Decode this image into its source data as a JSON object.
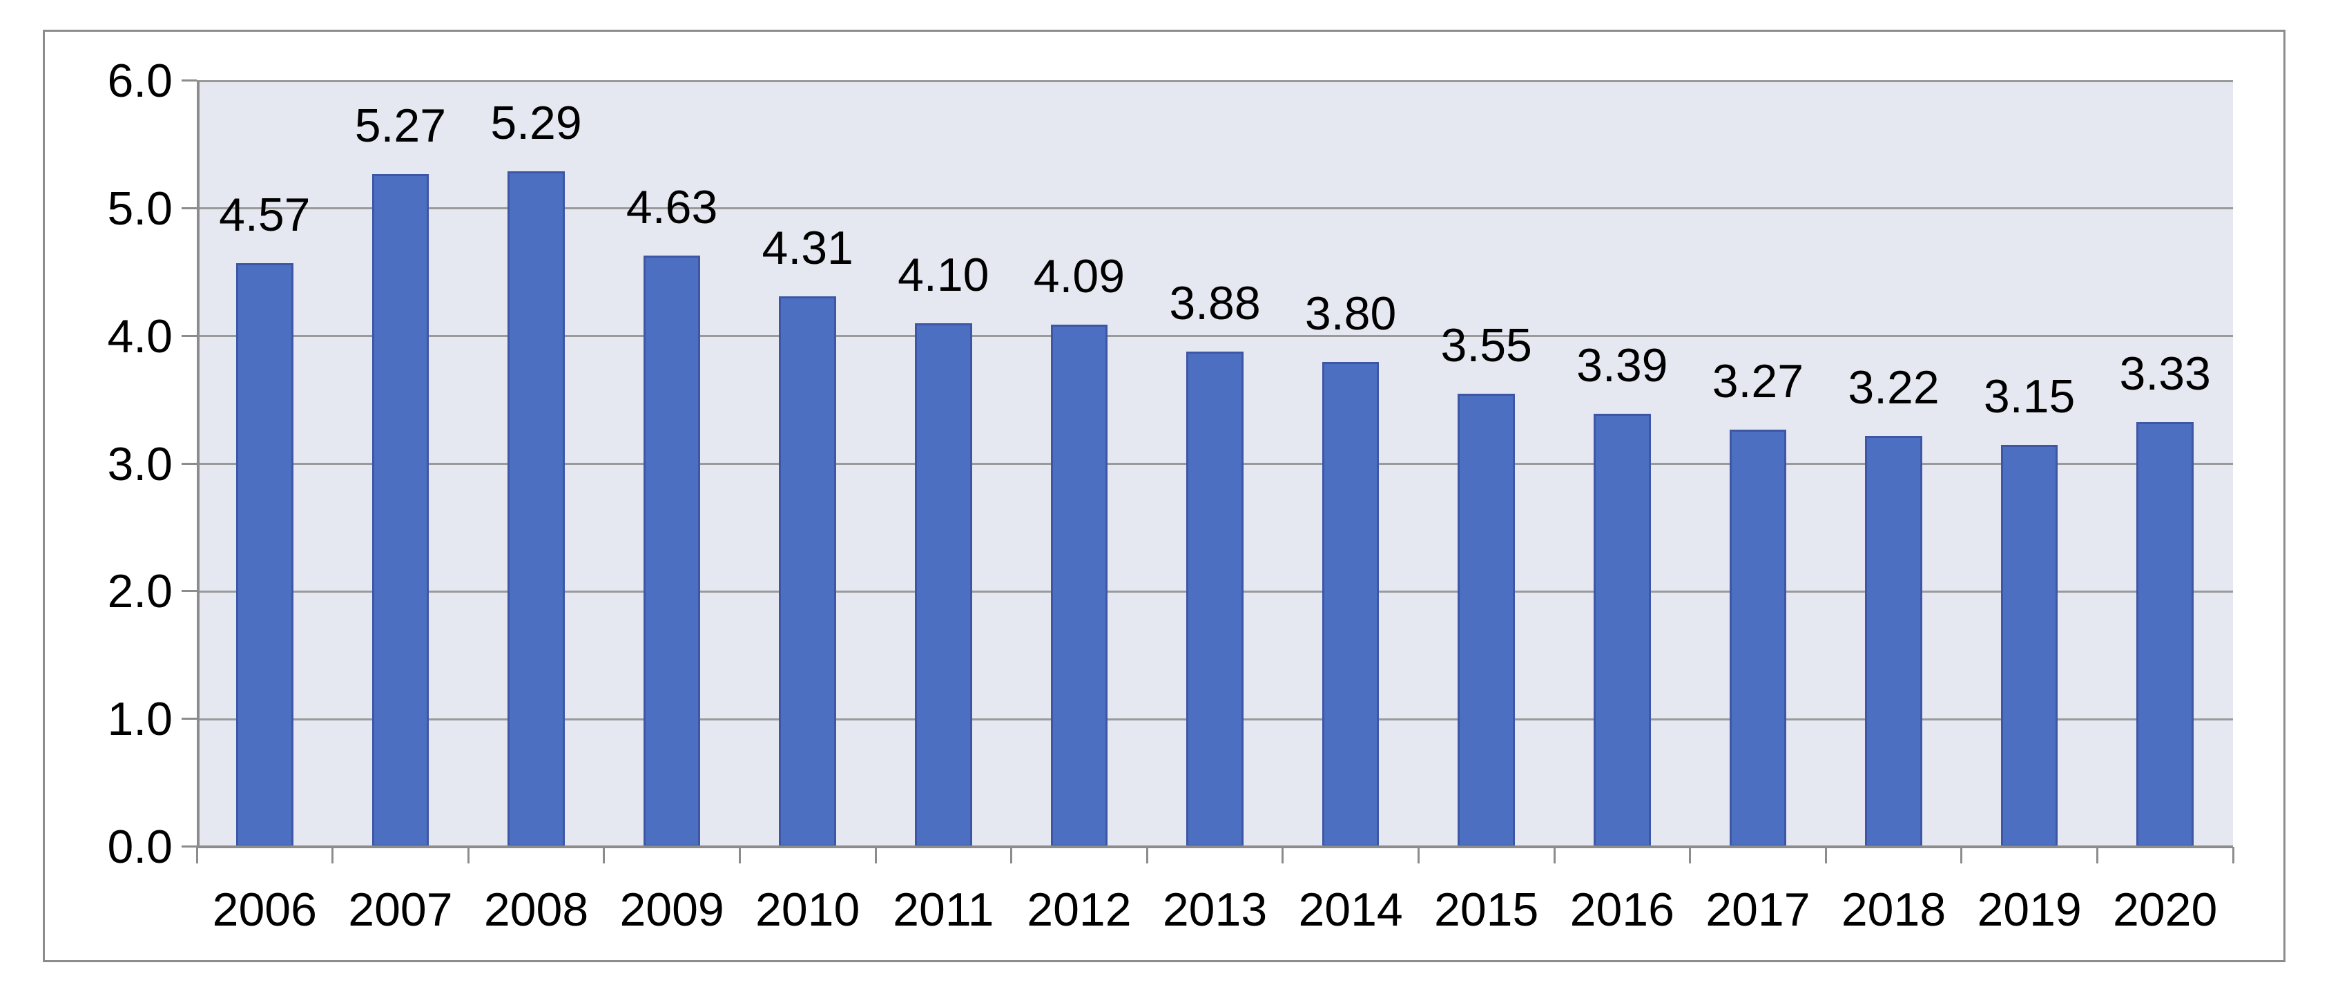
{
  "chart_data": {
    "type": "bar",
    "title": "",
    "xlabel": "",
    "ylabel": "",
    "categories": [
      "2006",
      "2007",
      "2008",
      "2009",
      "2010",
      "2011",
      "2012",
      "2013",
      "2014",
      "2015",
      "2016",
      "2017",
      "2018",
      "2019",
      "2020"
    ],
    "values": [
      4.57,
      5.27,
      5.29,
      4.63,
      4.31,
      4.1,
      4.09,
      3.88,
      3.8,
      3.55,
      3.39,
      3.27,
      3.22,
      3.15,
      3.33
    ],
    "value_labels": [
      "4.57",
      "5.27",
      "5.29",
      "4.63",
      "4.31",
      "4.10",
      "4.09",
      "3.88",
      "3.80",
      "3.55",
      "3.39",
      "3.27",
      "3.22",
      "3.15",
      "3.33"
    ],
    "ylim": [
      0,
      6
    ],
    "ytick_labels": [
      "0.0",
      "1.0",
      "2.0",
      "3.0",
      "4.0",
      "5.0",
      "6.0"
    ],
    "grid": true,
    "legend_position": "none",
    "colors": {
      "bar_fill": "#4d6fc1",
      "bar_border": "#3d56a6",
      "plot_background": "#e6e8f1",
      "gridline": "#9a9a9a",
      "axis": "#8c8c8c",
      "frame_border": "#8c8c8c",
      "label_text": "#000000",
      "page_background": "#ffffff"
    }
  }
}
